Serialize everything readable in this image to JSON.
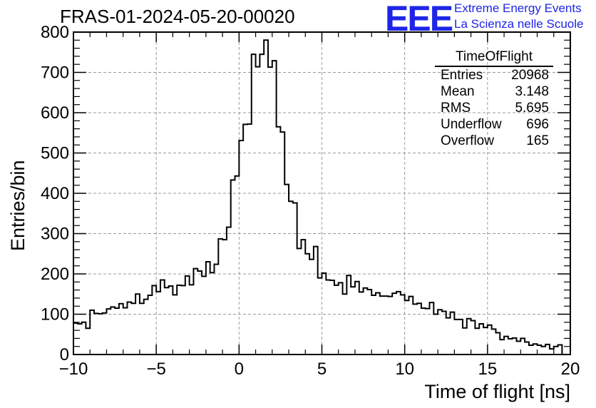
{
  "title": "FRAS-01-2024-05-20-00020",
  "logo": {
    "letters": "EEE",
    "line1": "Extreme Energy Events",
    "line2": "La Scienza nelle Scuole",
    "color": "#1f25e8"
  },
  "stats_box": {
    "title": "TimeOfFlight",
    "rows": [
      {
        "label": "Entries",
        "value": "20968"
      },
      {
        "label": "Mean",
        "value": "3.148"
      },
      {
        "label": "RMS",
        "value": "5.695"
      },
      {
        "label": "Underflow",
        "value": "696"
      },
      {
        "label": "Overflow",
        "value": "165"
      }
    ]
  },
  "chart_data": {
    "type": "histogram",
    "title": "FRAS-01-2024-05-20-00020",
    "xlabel": "Time of flight [ns]",
    "ylabel": "Entries/bin",
    "xlim": [
      -10,
      20
    ],
    "ylim": [
      0,
      800
    ],
    "bin_width": 0.25,
    "x_ticks": [
      "−10",
      "−5",
      "0",
      "5",
      "10",
      "15",
      "20"
    ],
    "y_ticks": [
      "0",
      "100",
      "200",
      "300",
      "400",
      "500",
      "600",
      "700",
      "800"
    ],
    "grid": true,
    "line_color": "#000000",
    "values": [
      78,
      76,
      80,
      65,
      110,
      102,
      101,
      103,
      113,
      118,
      115,
      126,
      116,
      130,
      127,
      150,
      127,
      137,
      147,
      171,
      156,
      185,
      166,
      170,
      148,
      172,
      171,
      195,
      173,
      213,
      207,
      194,
      230,
      203,
      224,
      287,
      285,
      316,
      433,
      443,
      531,
      571,
      572,
      745,
      714,
      745,
      780,
      713,
      729,
      565,
      552,
      422,
      380,
      376,
      263,
      285,
      250,
      236,
      268,
      190,
      202,
      185,
      184,
      172,
      178,
      150,
      196,
      168,
      181,
      155,
      165,
      161,
      147,
      153,
      145,
      145,
      144,
      152,
      156,
      148,
      134,
      144,
      125,
      127,
      115,
      114,
      129,
      100,
      111,
      107,
      91,
      105,
      87,
      87,
      66,
      89,
      84,
      65,
      76,
      67,
      73,
      63,
      54,
      37,
      45,
      39,
      41,
      33,
      40,
      31,
      23,
      26,
      23,
      20,
      25,
      14,
      20,
      24,
      0,
      0
    ]
  }
}
